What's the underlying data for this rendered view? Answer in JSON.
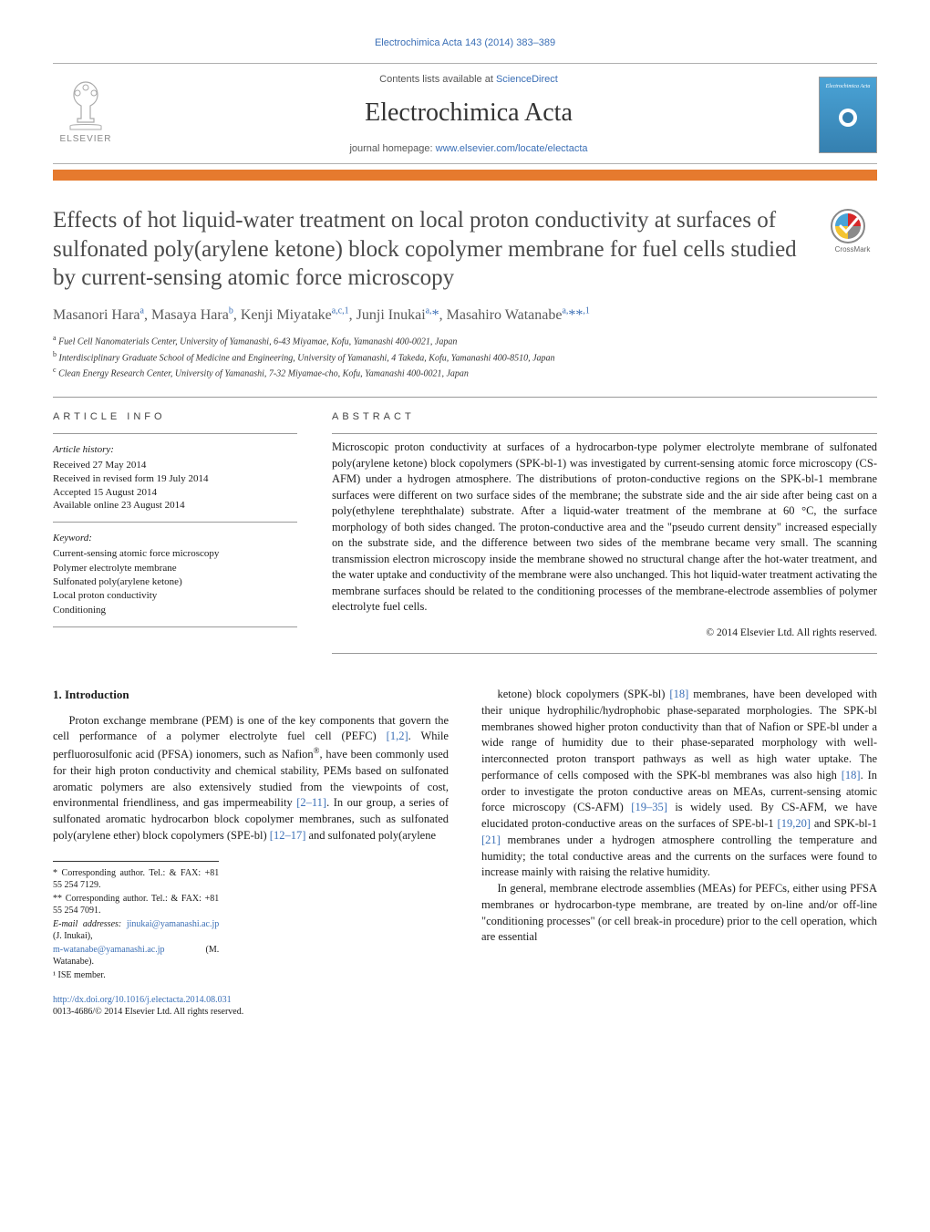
{
  "citation": "Electrochimica Acta 143 (2014) 383–389",
  "masthead": {
    "contents_prefix": "Contents lists available at ",
    "contents_link": "ScienceDirect",
    "journal": "Electrochimica Acta",
    "homepage_prefix": "journal homepage: ",
    "homepage_url": "www.elsevier.com/locate/electacta",
    "publisher": "ELSEVIER",
    "cover_label": "Electrochimica Acta"
  },
  "title": "Effects of hot liquid-water treatment on local proton conductivity at surfaces of sulfonated poly(arylene ketone) block copolymer membrane for fuel cells studied by current-sensing atomic force microscopy",
  "authors_html": "Masanori Hara<sup>a</sup>, Masaya Hara<sup>b</sup>, Kenji Miyatake<sup>a,c,1</sup>, Junji Inukai<sup>a,</sup><span class='star'>*</span>, Masahiro Watanabe<sup>a,</sup><span class='star'>**</span><sup>,1</sup>",
  "affiliations": [
    {
      "tag": "a",
      "text": "Fuel Cell Nanomaterials Center, University of Yamanashi, 6-43 Miyamae, Kofu, Yamanashi 400-0021, Japan"
    },
    {
      "tag": "b",
      "text": "Interdisciplinary Graduate School of Medicine and Engineering, University of Yamanashi, 4 Takeda, Kofu, Yamanashi 400-8510, Japan"
    },
    {
      "tag": "c",
      "text": "Clean Energy Research Center, University of Yamanashi, 7-32 Miyamae-cho, Kofu, Yamanashi 400-0021, Japan"
    }
  ],
  "article_info": {
    "heading": "ARTICLE INFO",
    "history_label": "Article history:",
    "history": [
      "Received 27 May 2014",
      "Received in revised form 19 July 2014",
      "Accepted 15 August 2014",
      "Available online 23 August 2014"
    ],
    "keyword_label": "Keyword:",
    "keywords": [
      "Current-sensing atomic force microscopy",
      "Polymer electrolyte membrane",
      "Sulfonated poly(arylene ketone)",
      "Local proton conductivity",
      "Conditioning"
    ]
  },
  "abstract": {
    "heading": "ABSTRACT",
    "text": "Microscopic proton conductivity at surfaces of a hydrocarbon-type polymer electrolyte membrane of sulfonated poly(arylene ketone) block copolymers (SPK-bl-1) was investigated by current-sensing atomic force microscopy (CS-AFM) under a hydrogen atmosphere. The distributions of proton-conductive regions on the SPK-bl-1 membrane surfaces were different on two surface sides of the membrane; the substrate side and the air side after being cast on a poly(ethylene terephthalate) substrate. After a liquid-water treatment of the membrane at 60 °C, the surface morphology of both sides changed. The proton-conductive area and the \"pseudo current density\" increased especially on the substrate side, and the difference between two sides of the membrane became very small. The scanning transmission electron microscopy inside the membrane showed no structural change after the hot-water treatment, and the water uptake and conductivity of the membrane were also unchanged. This hot liquid-water treatment activating the membrane surfaces should be related to the conditioning processes of the membrane-electrode assemblies of polymer electrolyte fuel cells.",
    "copyright": "© 2014 Elsevier Ltd. All rights reserved."
  },
  "intro": {
    "heading": "1. Introduction",
    "col1": "Proton exchange membrane (PEM) is one of the key components that govern the cell performance of a polymer electrolyte fuel cell (PEFC) <span class='ref'>[1,2]</span>. While perfluorosulfonic acid (PFSA) ionomers, such as Nafion<span class='sup'>®</span>, have been commonly used for their high proton conductivity and chemical stability, PEMs based on sulfonated aromatic polymers are also extensively studied from the viewpoints of cost, environmental friendliness, and gas impermeability <span class='ref'>[2–11]</span>. In our group, a series of sulfonated aromatic hydrocarbon block copolymer membranes, such as sulfonated poly(arylene ether) block copolymers (SPE-bl) <span class='ref'>[12–17]</span> and sulfonated poly(arylene",
    "col2_p1": "ketone) block copolymers (SPK-bl) <span class='ref'>[18]</span> membranes, have been developed with their unique hydrophilic/hydrophobic phase-separated morphologies. The SPK-bl membranes showed higher proton conductivity than that of Nafion or SPE-bl under a wide range of humidity due to their phase-separated morphology with well-interconnected proton transport pathways as well as high water uptake. The performance of cells composed with the SPK-bl membranes was also high <span class='ref'>[18]</span>. In order to investigate the proton conductive areas on MEAs, current-sensing atomic force microscopy (CS-AFM) <span class='ref'>[19–35]</span> is widely used. By CS-AFM, we have elucidated proton-conductive areas on the surfaces of SPE-bl-1 <span class='ref'>[19,20]</span> and SPK-bl-1 <span class='ref'>[21]</span> membranes under a hydrogen atmosphere controlling the temperature and humidity; the total conductive areas and the currents on the surfaces were found to increase mainly with raising the relative humidity.",
    "col2_p2": "In general, membrane electrode assemblies (MEAs) for PEFCs, either using PFSA membranes or hydrocarbon-type membrane, are treated by on-line and/or off-line \"conditioning processes\" (or cell break-in procedure) prior to the cell operation, which are essential"
  },
  "footnotes": {
    "corr1": "* Corresponding author. Tel.: & FAX: +81 55 254 7129.",
    "corr2": "** Corresponding author. Tel.: & FAX: +81 55 254 7091.",
    "emails_label": "E-mail addresses:",
    "email1": "jinukai@yamanashi.ac.jp",
    "email1_who": " (J. Inukai),",
    "email2": "m-watanabe@yamanashi.ac.jp",
    "email2_who": " (M. Watanabe).",
    "note1": "¹ ISE member."
  },
  "doi": {
    "url": "http://dx.doi.org/10.1016/j.electacta.2014.08.031",
    "issn_line": "0013-4686/© 2014 Elsevier Ltd. All rights reserved."
  },
  "colors": {
    "link": "#3b6fb6",
    "rule": "#e67a2e"
  }
}
